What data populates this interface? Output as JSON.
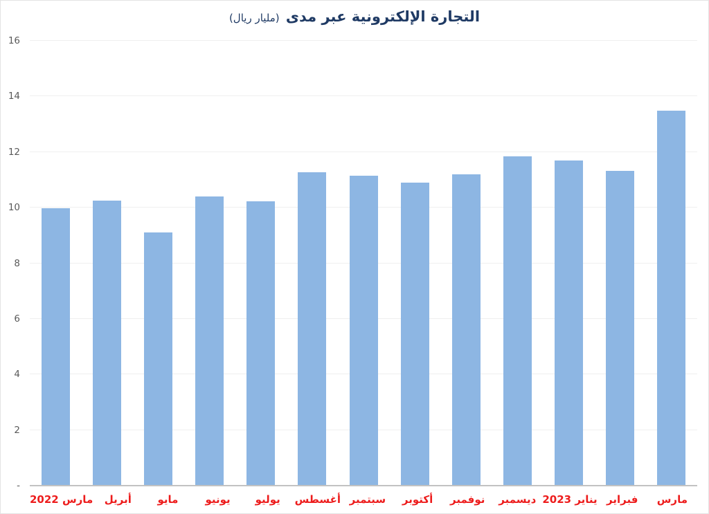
{
  "title": {
    "main": "التجارة الإلكترونية عبر مدى",
    "unit": "(مليار ريال)"
  },
  "colors": {
    "bar_fill": "#8db6e3",
    "title_text": "#1f3a64",
    "x_label_text": "#ed1c1c",
    "y_label_text": "#595959",
    "axis_line": "#c2c2c2",
    "gridline": "#efefef"
  },
  "chart_data": {
    "type": "bar",
    "title": "التجارة الإلكترونية عبر مدى (مليار ريال)",
    "categories": [
      "مارس 2022",
      "أبريل",
      "مايو",
      "يونيو",
      "يوليو",
      "أغسطس",
      "سبتمبر",
      "أكتوبر",
      "نوفمبر",
      "ديسمبر",
      "يناير 2023",
      "فبراير",
      "مارس"
    ],
    "values": [
      9.97,
      10.25,
      9.1,
      10.4,
      10.22,
      11.28,
      11.16,
      10.89,
      11.21,
      11.85,
      11.7,
      11.31,
      13.49
    ],
    "xlabel": "",
    "ylabel": "",
    "ylim": [
      0,
      16
    ],
    "ytick_step": 2,
    "ytick_labels": [
      "-",
      "2",
      "4",
      "6",
      "8",
      "10",
      "12",
      "14",
      "16"
    ],
    "grid": true,
    "legend": false,
    "x_order": "oldest month on the left, newest on the right"
  }
}
